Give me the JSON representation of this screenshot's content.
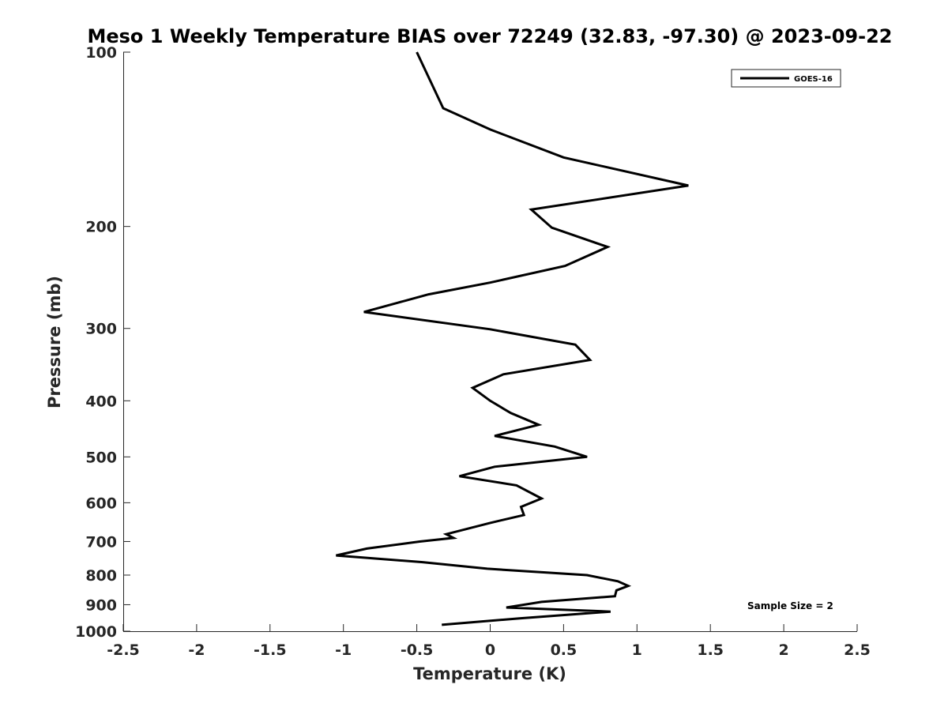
{
  "chart_data": {
    "type": "line",
    "title": "Meso 1 Weekly Temperature BIAS over 72249 (32.83, -97.30) @ 2023-09-22",
    "xlabel": "Temperature (K)",
    "ylabel": "Pressure (mb)",
    "xlim": [
      -2.5,
      2.5
    ],
    "ylim": [
      100,
      1000
    ],
    "y_scale": "log",
    "y_reversed": true,
    "x_ticks": [
      "-2.5",
      "-2",
      "-1.5",
      "-1",
      "-0.5",
      "0",
      "0.5",
      "1",
      "1.5",
      "2",
      "2.5"
    ],
    "y_ticks": [
      "100",
      "200",
      "300",
      "400",
      "500",
      "600",
      "700",
      "800",
      "900",
      "1000"
    ],
    "grid": false,
    "legend_position": "top-right",
    "annotation": "Sample Size = 2",
    "series": [
      {
        "name": "GOES-16",
        "color": "#000000",
        "points": [
          {
            "x": -0.5,
            "y": 100
          },
          {
            "x": -0.32,
            "y": 125
          },
          {
            "x": 0.0,
            "y": 136
          },
          {
            "x": 0.5,
            "y": 152
          },
          {
            "x": 1.35,
            "y": 170
          },
          {
            "x": 0.28,
            "y": 187
          },
          {
            "x": 0.42,
            "y": 201
          },
          {
            "x": 0.8,
            "y": 217
          },
          {
            "x": 0.51,
            "y": 234
          },
          {
            "x": 0.0,
            "y": 250
          },
          {
            "x": -0.42,
            "y": 262
          },
          {
            "x": -0.86,
            "y": 281
          },
          {
            "x": 0.0,
            "y": 301
          },
          {
            "x": 0.58,
            "y": 320
          },
          {
            "x": 0.68,
            "y": 340
          },
          {
            "x": 0.09,
            "y": 360
          },
          {
            "x": -0.12,
            "y": 380
          },
          {
            "x": 0.0,
            "y": 400
          },
          {
            "x": 0.14,
            "y": 420
          },
          {
            "x": 0.33,
            "y": 440
          },
          {
            "x": 0.03,
            "y": 460
          },
          {
            "x": 0.44,
            "y": 480
          },
          {
            "x": 0.66,
            "y": 500
          },
          {
            "x": 0.03,
            "y": 520
          },
          {
            "x": -0.21,
            "y": 540
          },
          {
            "x": 0.18,
            "y": 560
          },
          {
            "x": 0.35,
            "y": 590
          },
          {
            "x": 0.21,
            "y": 610
          },
          {
            "x": 0.23,
            "y": 630
          },
          {
            "x": 0.0,
            "y": 650
          },
          {
            "x": -0.3,
            "y": 680
          },
          {
            "x": -0.25,
            "y": 690
          },
          {
            "x": -0.48,
            "y": 700
          },
          {
            "x": -0.84,
            "y": 720
          },
          {
            "x": -1.05,
            "y": 740
          },
          {
            "x": -0.46,
            "y": 760
          },
          {
            "x": -0.02,
            "y": 780
          },
          {
            "x": 0.66,
            "y": 800
          },
          {
            "x": 0.87,
            "y": 820
          },
          {
            "x": 0.94,
            "y": 835
          },
          {
            "x": 0.86,
            "y": 850
          },
          {
            "x": 0.85,
            "y": 870
          },
          {
            "x": 0.35,
            "y": 890
          },
          {
            "x": 0.11,
            "y": 910
          },
          {
            "x": 0.82,
            "y": 925
          },
          {
            "x": 0.2,
            "y": 950
          },
          {
            "x": -0.33,
            "y": 975
          }
        ]
      }
    ]
  }
}
